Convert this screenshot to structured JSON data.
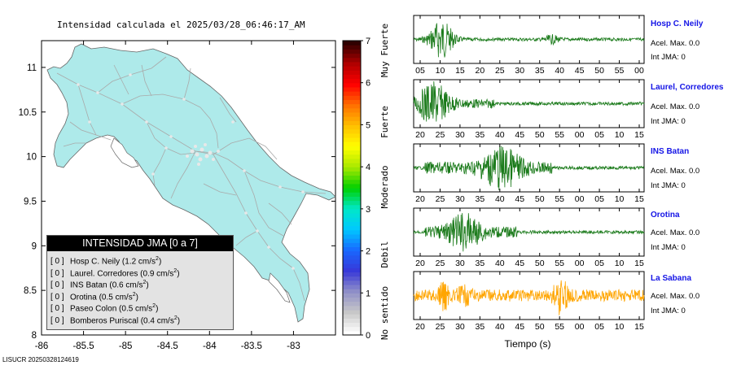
{
  "map": {
    "title": "Intensidad calculada el 2025/03/28_06:46:17_AM",
    "footer_id": "LISUCR 20250328124619"
  },
  "legend": {
    "header": "INTENSIDAD JMA [0 a 7]",
    "rows": [
      {
        "code": "[ 0 ]",
        "station": "Hosp C. Neily",
        "pga": "(1.2 cm/s",
        "sup": "2",
        "close": ")"
      },
      {
        "code": "[ 0 ]",
        "station": "Laurel. Corredores",
        "pga": "(0.9 cm/s",
        "sup": "2",
        "close": ")"
      },
      {
        "code": "[ 0 ]",
        "station": "INS Batan",
        "pga": "(0.6 cm/s",
        "sup": "2",
        "close": ")"
      },
      {
        "code": "[ 0 ]",
        "station": "Orotina",
        "pga": "(0.5 cm/s",
        "sup": "2",
        "close": ")"
      },
      {
        "code": "[ 0 ]",
        "station": "Paseo Colon",
        "pga": "(0.5 cm/s",
        "sup": "2",
        "close": ")"
      },
      {
        "code": "[ 0 ]",
        "station": "Bomberos Puriscal",
        "pga": "(0.4 cm/s",
        "sup": "2",
        "close": ")"
      }
    ]
  },
  "colorbar": {
    "ticks": [
      "0",
      "1",
      "2",
      "3",
      "4",
      "5",
      "6",
      "7"
    ],
    "labels": [
      "No sentido",
      "Debil",
      "Moderado",
      "Fuerte",
      "Muy Fuerte"
    ]
  },
  "traces": {
    "xlabel": "Tiempo (s)",
    "stations": [
      {
        "name": "Hosp C. Neily",
        "acel": "Acel. Max. 0.0",
        "jma": "Int JMA: 0",
        "color": "#1a7a1a",
        "ticks": [
          "05",
          "10",
          "15",
          "20",
          "25",
          "30",
          "35",
          "40",
          "45",
          "50",
          "55",
          "00"
        ]
      },
      {
        "name": "Laurel, Corredores",
        "acel": "Acel. Max. 0.0",
        "jma": "Int JMA: 0",
        "color": "#1a7a1a",
        "ticks": [
          "20",
          "25",
          "30",
          "35",
          "40",
          "45",
          "50",
          "55",
          "00",
          "05",
          "10",
          "15"
        ]
      },
      {
        "name": "INS Batan",
        "acel": "Acel. Max. 0.0",
        "jma": "Int JMA: 0",
        "color": "#1a7a1a",
        "ticks": [
          "20",
          "25",
          "30",
          "35",
          "40",
          "45",
          "50",
          "55",
          "00",
          "05",
          "10",
          "15"
        ]
      },
      {
        "name": "Orotina",
        "acel": "Acel. Max. 0.0",
        "jma": "Int JMA: 0",
        "color": "#1a7a1a",
        "ticks": [
          "20",
          "25",
          "30",
          "35",
          "40",
          "45",
          "50",
          "55",
          "00",
          "05",
          "10",
          "15"
        ]
      },
      {
        "name": "La Sabana",
        "acel": "Acel. Max. 0.0",
        "jma": "Int JMA: 0",
        "color": "#ffa500",
        "ticks": [
          "20",
          "25",
          "30",
          "35",
          "40",
          "45",
          "50",
          "55",
          "00",
          "05",
          "10",
          "15"
        ]
      }
    ]
  },
  "chart_data": [
    {
      "type": "heatmap",
      "title": "Intensidad calculada el 2025/03/28_06:46:17_AM",
      "xlabel": "",
      "ylabel": "",
      "xlim": [
        -86,
        -82.5
      ],
      "ylim": [
        8,
        11.3
      ],
      "xticks": [
        -86,
        -85.5,
        -85,
        -84.5,
        -84,
        -83.5,
        -83
      ],
      "xtick_labels": [
        "-86",
        "-85.5",
        "-85",
        "-84.5",
        "-84",
        "-83.5",
        "-83"
      ],
      "yticks": [
        8,
        8.5,
        9,
        9.5,
        10,
        10.5,
        11
      ],
      "ytick_labels": [
        "8",
        "8.5",
        "9",
        "9.5",
        "10",
        "10.5",
        "11"
      ],
      "colorbar_range": [
        0,
        7
      ],
      "field_value": 0,
      "field_color": "#aeeaea"
    },
    {
      "type": "line",
      "title": "",
      "xlabel": "Tiempo (s)",
      "ylabel": "",
      "series": [
        {
          "name": "Hosp C. Neily",
          "burst_times": [
            8,
            10,
            12
          ],
          "secondary_burst": 40
        },
        {
          "name": "Laurel, Corredores",
          "burst_times": [
            17,
            19,
            21
          ]
        },
        {
          "name": "INS Batan",
          "burst_times": [
            35,
            38,
            40
          ]
        },
        {
          "name": "Orotina",
          "burst_times": [
            25,
            28,
            30
          ]
        },
        {
          "name": "La Sabana",
          "burst_times": [
            25,
            55,
            58
          ]
        }
      ]
    }
  ]
}
